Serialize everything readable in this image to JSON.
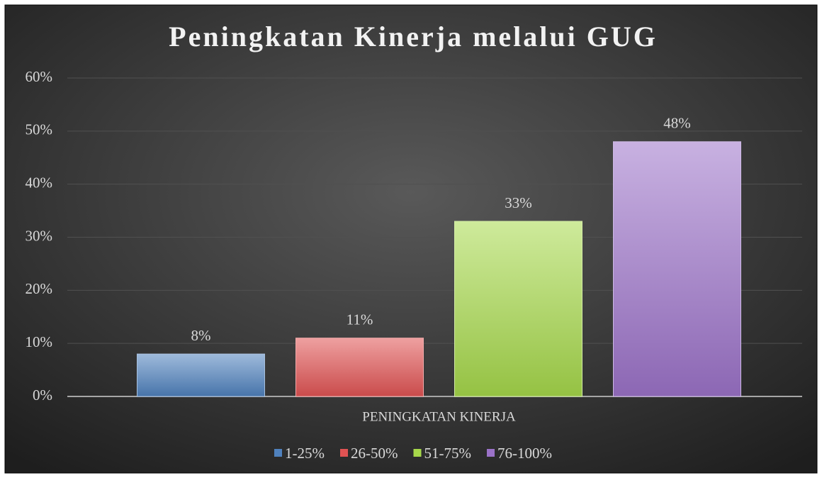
{
  "chart_data": {
    "type": "bar",
    "title": "Peningkatan Kinerja melalui GUG",
    "categories": [
      "PENINGKATAN KINERJA"
    ],
    "series": [
      {
        "name": "1-25%",
        "color": "#4f81bd",
        "values": [
          8
        ],
        "value_labels": [
          "8%"
        ]
      },
      {
        "name": "26-50%",
        "color": "#e05353",
        "values": [
          11
        ],
        "value_labels": [
          "11%"
        ]
      },
      {
        "name": "51-75%",
        "color": "#a6d84a",
        "values": [
          33
        ],
        "value_labels": [
          "33%"
        ]
      },
      {
        "name": "76-100%",
        "color": "#9b72c8",
        "values": [
          48
        ],
        "value_labels": [
          "48%"
        ]
      }
    ],
    "ylim": [
      0,
      60
    ],
    "yticks": [
      {
        "value": 0,
        "label": "0%"
      },
      {
        "value": 10,
        "label": "10%"
      },
      {
        "value": 20,
        "label": "20%"
      },
      {
        "value": 30,
        "label": "30%"
      },
      {
        "value": 40,
        "label": "40%"
      },
      {
        "value": 50,
        "label": "50%"
      },
      {
        "value": 60,
        "label": "60%"
      }
    ],
    "grid": true,
    "legend": "bottom"
  }
}
